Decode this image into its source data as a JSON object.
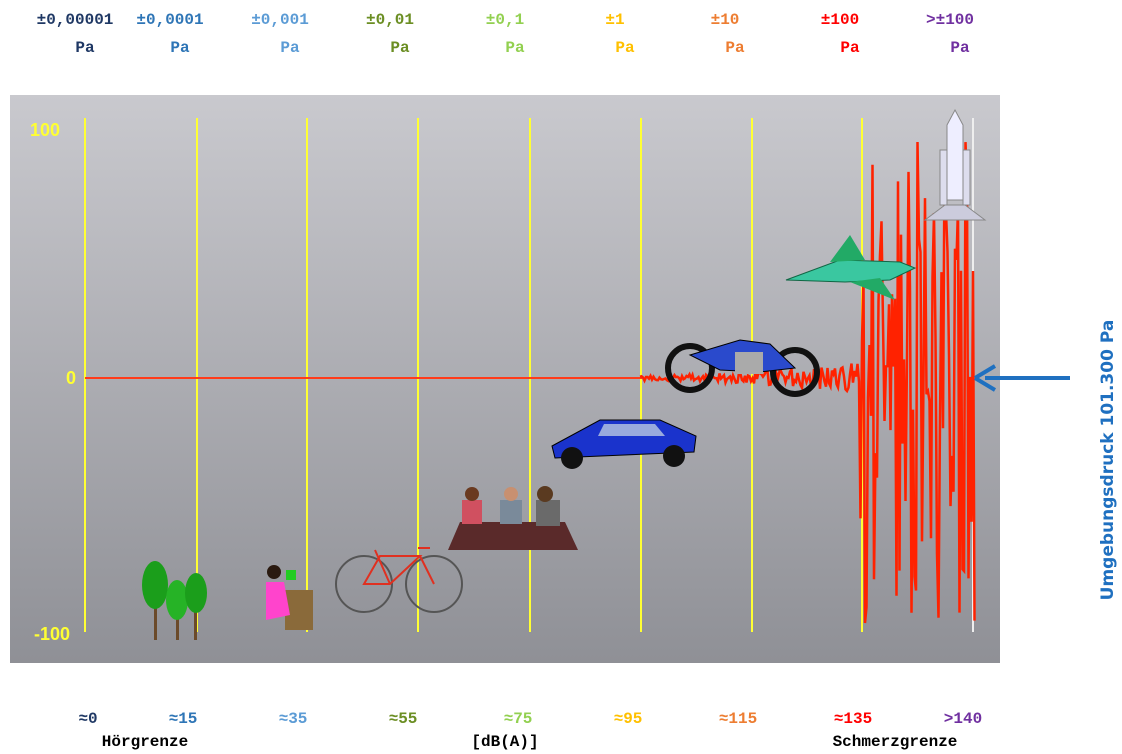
{
  "pressure_scale": [
    {
      "value": "±0,00001",
      "unit": "Pa",
      "color": "#1f3864"
    },
    {
      "value": "±0,0001",
      "unit": "Pa",
      "color": "#2e75b6"
    },
    {
      "value": "±0,001",
      "unit": "Pa",
      "color": "#5b9bd5"
    },
    {
      "value": "±0,01",
      "unit": "Pa",
      "color": "#6b8e23"
    },
    {
      "value": "±0,1",
      "unit": "Pa",
      "color": "#92d050"
    },
    {
      "value": "±1",
      "unit": "Pa",
      "color": "#ffc000"
    },
    {
      "value": "±10",
      "unit": "Pa",
      "color": "#ed7d31"
    },
    {
      "value": "±100",
      "unit": "Pa",
      "color": "#ff0000"
    },
    {
      "value": ">±100",
      "unit": "Pa",
      "color": "#7030a0"
    }
  ],
  "level_scale": [
    {
      "value": "≈0",
      "color": "#1f3864"
    },
    {
      "value": "≈15",
      "color": "#2e75b6"
    },
    {
      "value": "≈35",
      "color": "#5b9bd5"
    },
    {
      "value": "≈55",
      "color": "#6b8e23"
    },
    {
      "value": "≈75",
      "color": "#92d050"
    },
    {
      "value": "≈95",
      "color": "#ffc000"
    },
    {
      "value": "≈115",
      "color": "#ed7d31"
    },
    {
      "value": "≈135",
      "color": "#ff0000"
    },
    {
      "value": ">140",
      "color": "#7030a0"
    }
  ],
  "level_notes": {
    "left": "Hörgrenze",
    "center": "[dB(A)]",
    "right": "Schmerzgrenze"
  },
  "axis_labels": {
    "top": "100",
    "middle": "0",
    "bottom": "-100"
  },
  "side_label": "Umgebungsdruck 101.300 Pa"
}
